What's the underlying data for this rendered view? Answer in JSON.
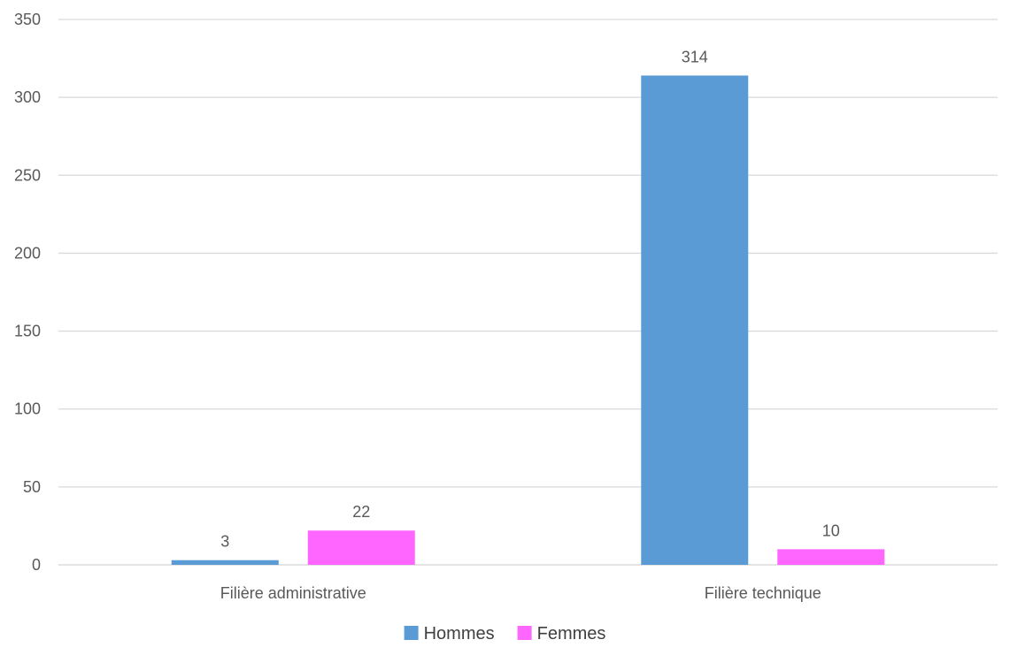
{
  "chart_data": {
    "type": "bar",
    "title": "",
    "xlabel": "",
    "ylabel": "",
    "categories": [
      "Filière administrative",
      "Filière technique"
    ],
    "series": [
      {
        "name": "Hommes",
        "color": "#5b9bd5",
        "values": [
          3,
          314
        ]
      },
      {
        "name": "Femmes",
        "color": "#ff66ff",
        "values": [
          22,
          10
        ]
      }
    ],
    "ylim": [
      0,
      350
    ],
    "yticks": [
      0,
      50,
      100,
      150,
      200,
      250,
      300,
      350
    ],
    "grid": true,
    "gridColor": "#d9d9d9",
    "legend": "bottom",
    "dataLabels": true
  }
}
